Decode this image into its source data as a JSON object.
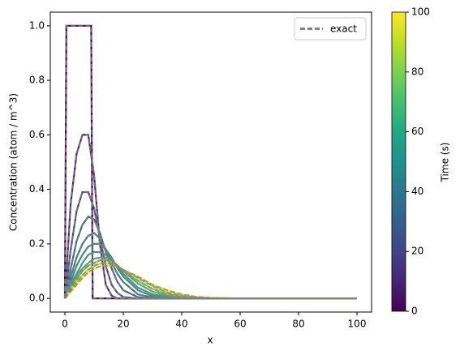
{
  "chart_data": {
    "type": "line",
    "xlabel": "x",
    "ylabel": "Concentration (atom / m^3)",
    "x": [
      0,
      2,
      4,
      6,
      8,
      10,
      12,
      14,
      16,
      18,
      20,
      25,
      30,
      35,
      40,
      45,
      50,
      60,
      70,
      80,
      90,
      100
    ],
    "series": [
      {
        "color": "#440154",
        "x": [
          0,
          0.5,
          9,
          9.5,
          100
        ],
        "values": [
          0,
          1,
          1,
          0,
          0
        ]
      },
      {
        "color": "#482475",
        "values": [
          0,
          0.35,
          0.53,
          0.6,
          0.6,
          0.45,
          0.2,
          0.05,
          0.01,
          0,
          0,
          0,
          0,
          0,
          0,
          0,
          0,
          0,
          0,
          0,
          0,
          0
        ]
      },
      {
        "color": "#414487",
        "values": [
          0,
          0.18,
          0.32,
          0.39,
          0.39,
          0.33,
          0.22,
          0.12,
          0.05,
          0.02,
          0.005,
          0,
          0,
          0,
          0,
          0,
          0,
          0,
          0,
          0,
          0,
          0
        ]
      },
      {
        "color": "#355f8d",
        "values": [
          0,
          0.11,
          0.21,
          0.27,
          0.3,
          0.29,
          0.24,
          0.17,
          0.11,
          0.06,
          0.03,
          0.005,
          0,
          0,
          0,
          0,
          0,
          0,
          0,
          0,
          0,
          0
        ]
      },
      {
        "color": "#2a788e",
        "values": [
          0,
          0.08,
          0.15,
          0.2,
          0.23,
          0.24,
          0.22,
          0.18,
          0.13,
          0.09,
          0.06,
          0.015,
          0.003,
          0,
          0,
          0,
          0,
          0,
          0,
          0,
          0,
          0
        ]
      },
      {
        "color": "#21918c",
        "values": [
          0,
          0.06,
          0.12,
          0.16,
          0.19,
          0.2,
          0.2,
          0.18,
          0.15,
          0.11,
          0.08,
          0.03,
          0.008,
          0.002,
          0,
          0,
          0,
          0,
          0,
          0,
          0,
          0
        ]
      },
      {
        "color": "#22a884",
        "values": [
          0,
          0.05,
          0.09,
          0.13,
          0.16,
          0.17,
          0.17,
          0.16,
          0.14,
          0.12,
          0.09,
          0.04,
          0.015,
          0.005,
          0.001,
          0,
          0,
          0,
          0,
          0,
          0,
          0
        ]
      },
      {
        "color": "#44bf70",
        "values": [
          0,
          0.04,
          0.08,
          0.11,
          0.13,
          0.145,
          0.15,
          0.15,
          0.14,
          0.12,
          0.1,
          0.055,
          0.025,
          0.01,
          0.003,
          0.001,
          0,
          0,
          0,
          0,
          0,
          0
        ]
      },
      {
        "color": "#7ad151",
        "values": [
          0,
          0.035,
          0.07,
          0.1,
          0.12,
          0.13,
          0.14,
          0.14,
          0.135,
          0.12,
          0.1,
          0.065,
          0.035,
          0.015,
          0.006,
          0.002,
          0.001,
          0,
          0,
          0,
          0,
          0
        ]
      },
      {
        "color": "#bddf26",
        "values": [
          0,
          0.03,
          0.06,
          0.085,
          0.105,
          0.12,
          0.127,
          0.13,
          0.128,
          0.12,
          0.105,
          0.075,
          0.045,
          0.022,
          0.01,
          0.004,
          0.001,
          0,
          0,
          0,
          0,
          0
        ]
      },
      {
        "color": "#fde725",
        "values": [
          0,
          0.025,
          0.05,
          0.075,
          0.095,
          0.11,
          0.117,
          0.12,
          0.12,
          0.115,
          0.105,
          0.08,
          0.05,
          0.03,
          0.015,
          0.006,
          0.002,
          0,
          0,
          0,
          0,
          0
        ]
      }
    ],
    "exact": {
      "name": "exact",
      "color": "#808080"
    },
    "xlim": [
      -5,
      105
    ],
    "xticks": [
      0,
      20,
      40,
      60,
      80,
      100
    ],
    "ylim": [
      -0.05,
      1.05
    ],
    "yticks": [
      {
        "value": 0,
        "label": "0.0"
      },
      {
        "value": 0.2,
        "label": "0.2"
      },
      {
        "value": 0.4,
        "label": "0.4"
      },
      {
        "value": 0.6,
        "label": "0.6"
      },
      {
        "value": 0.8,
        "label": "0.8"
      },
      {
        "value": 1,
        "label": "1.0"
      }
    ],
    "legend": "upper right",
    "colorbar": {
      "label": "Time (s)",
      "lim": [
        0,
        100
      ],
      "ticks": [
        0,
        20,
        40,
        60,
        80,
        100
      ]
    }
  }
}
